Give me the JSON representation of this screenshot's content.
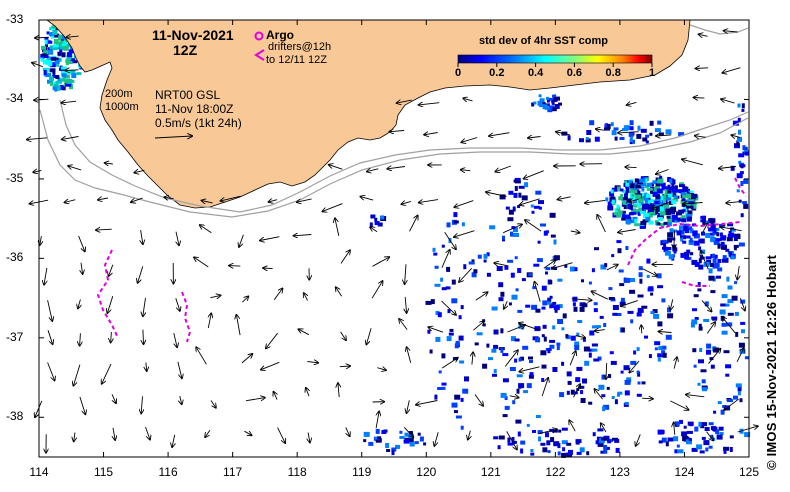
{
  "header": {
    "date": "11-Nov-2021",
    "hour": "12Z"
  },
  "legend": {
    "argo_label": "Argo",
    "drifters_label": "drifters@12h",
    "drifters_to": "to 12/11 12Z",
    "argo_color": "#e000e0",
    "drifter_color": "#e000e0"
  },
  "isobaths": {
    "label_200": "200m",
    "label_1000": "1000m"
  },
  "current_info": {
    "model": "NRT00 GSL",
    "time": "11-Nov 18:00Z",
    "scale": "0.5m/s (1kt 24h)"
  },
  "colorbar": {
    "title": "std dev of 4hr SST comp",
    "ticks": [
      "0",
      "0.2",
      "0.4",
      "0.6",
      "0.8",
      "1"
    ],
    "colors": [
      "#00007f",
      "#0000ff",
      "#007fff",
      "#00ffff",
      "#7fff7f",
      "#ffff00",
      "#ff7f00",
      "#ff0000",
      "#7f0000"
    ]
  },
  "axes": {
    "x_ticks": [
      "114",
      "115",
      "116",
      "117",
      "118",
      "119",
      "120",
      "121",
      "122",
      "123",
      "124",
      "125"
    ],
    "y_ticks": [
      "-33",
      "-34",
      "-35",
      "-36",
      "-37",
      "-38"
    ],
    "lon_range": [
      114,
      125
    ],
    "lat_range": [
      -38.5,
      -33
    ]
  },
  "colors": {
    "land": "#f8c896",
    "isobath": "#a0a0a0"
  },
  "credit": "© IMOS 15-Nov-2021 12:26 Hobart"
}
